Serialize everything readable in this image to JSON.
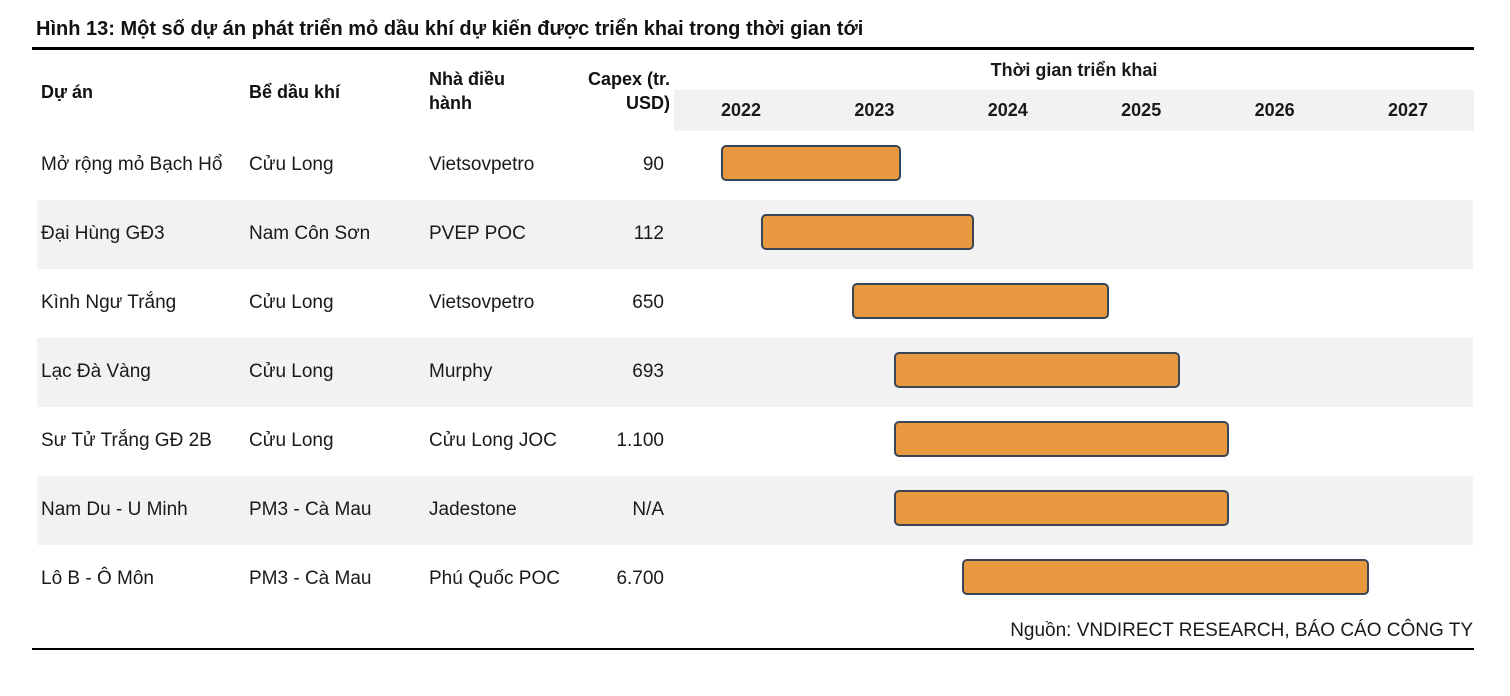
{
  "title": "Hình 13: Một số dự án phát triển mỏ dầu khí dự kiến được triển khai trong thời gian tới",
  "headers": {
    "project": "Dự án",
    "basin": "Bể dầu khí",
    "operator_line1": "Nhà điều",
    "operator_line2": "hành",
    "capex_line1": "Capex (tr.",
    "capex_line2": "USD)",
    "timeline": "Thời gian triển khai"
  },
  "years": [
    "2022",
    "2023",
    "2024",
    "2025",
    "2026",
    "2027"
  ],
  "rows": [
    {
      "project": "Mở rộng mỏ Bạch Hổ",
      "basin": "Cửu Long",
      "operator": "Vietsovpetro",
      "capex": "90",
      "start": 2021.85,
      "end": 2023.2
    },
    {
      "project": "Đại Hùng GĐ3",
      "basin": "Nam Côn Sơn",
      "operator": "PVEP POC",
      "capex": "112",
      "start": 2022.15,
      "end": 2023.75
    },
    {
      "project": "Kình Ngư Trắng",
      "basin": "Cửu Long",
      "operator": "Vietsovpetro",
      "capex": "650",
      "start": 2022.83,
      "end": 2024.76
    },
    {
      "project": "Lạc Đà Vàng",
      "basin": "Cửu Long",
      "operator": "Murphy",
      "capex": "693",
      "start": 2023.15,
      "end": 2025.29
    },
    {
      "project": "Sư Tử Trắng GĐ 2B",
      "basin": "Cửu Long",
      "operator": "Cửu Long JOC",
      "capex": "1.100",
      "start": 2023.15,
      "end": 2025.66
    },
    {
      "project": "Nam Du - U Minh",
      "basin": "PM3 - Cà Mau",
      "operator": "Jadestone",
      "capex": "N/A",
      "start": 2023.15,
      "end": 2025.66
    },
    {
      "project": "Lô B - Ô Môn",
      "basin": "PM3 - Cà Mau",
      "operator": "Phú Quốc POC",
      "capex": "6.700",
      "start": 2023.66,
      "end": 2026.71
    }
  ],
  "bar_color": "#e8983e",
  "bar_border_color": "#3a4558",
  "source": "Nguồn: VNDIRECT RESEARCH, BÁO CÁO CÔNG TY"
}
